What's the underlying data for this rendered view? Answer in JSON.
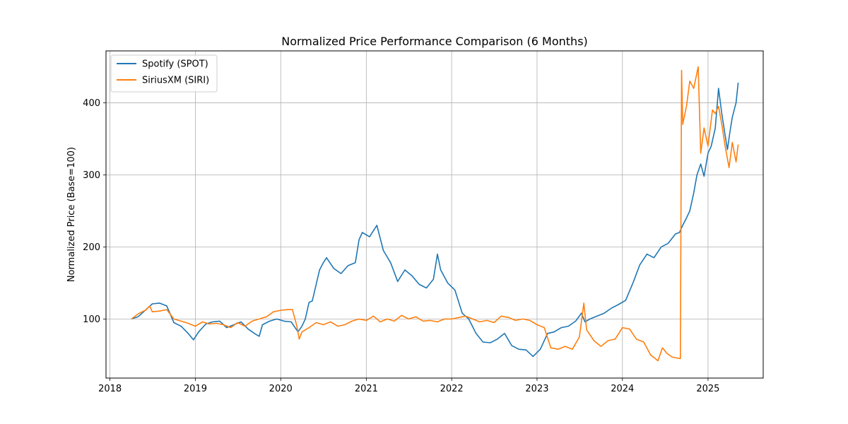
{
  "chart_data": {
    "type": "line",
    "title": "Normalized Price Performance Comparison (6 Months)",
    "xlabel": "",
    "ylabel": "Normalized Price (Base=100)",
    "xlim": [
      "2017-12-15",
      "2025-08-25"
    ],
    "ylim": [
      18,
      472
    ],
    "xticks": [
      {
        "date": "2018-01-01",
        "label": "2018"
      },
      {
        "date": "2019-01-01",
        "label": "2019"
      },
      {
        "date": "2020-01-01",
        "label": "2020"
      },
      {
        "date": "2021-01-01",
        "label": "2021"
      },
      {
        "date": "2022-01-01",
        "label": "2022"
      },
      {
        "date": "2023-01-01",
        "label": "2023"
      },
      {
        "date": "2024-01-01",
        "label": "2024"
      },
      {
        "date": "2025-01-01",
        "label": "2025"
      }
    ],
    "yticks": [
      100,
      200,
      300,
      400
    ],
    "grid": true,
    "legend_position": "top-left",
    "series": [
      {
        "name": "Spotify (SPOT)",
        "color": "#1f77b4",
        "points": [
          [
            "2018-04-03",
            100
          ],
          [
            "2018-05-01",
            103
          ],
          [
            "2018-06-01",
            112
          ],
          [
            "2018-07-01",
            121
          ],
          [
            "2018-08-01",
            122
          ],
          [
            "2018-09-01",
            118
          ],
          [
            "2018-10-01",
            95
          ],
          [
            "2018-11-01",
            90
          ],
          [
            "2018-12-01",
            80
          ],
          [
            "2018-12-24",
            71
          ],
          [
            "2019-01-15",
            82
          ],
          [
            "2019-02-15",
            93
          ],
          [
            "2019-03-15",
            96
          ],
          [
            "2019-04-15",
            97
          ],
          [
            "2019-05-15",
            88
          ],
          [
            "2019-06-15",
            92
          ],
          [
            "2019-07-15",
            96
          ],
          [
            "2019-08-15",
            86
          ],
          [
            "2019-09-15",
            79
          ],
          [
            "2019-10-01",
            76
          ],
          [
            "2019-10-15",
            92
          ],
          [
            "2019-11-15",
            97
          ],
          [
            "2019-12-15",
            100
          ],
          [
            "2020-01-15",
            97
          ],
          [
            "2020-02-15",
            96
          ],
          [
            "2020-03-15",
            82
          ],
          [
            "2020-04-01",
            90
          ],
          [
            "2020-04-15",
            100
          ],
          [
            "2020-05-01",
            123
          ],
          [
            "2020-05-15",
            125
          ],
          [
            "2020-06-15",
            168
          ],
          [
            "2020-07-01",
            178
          ],
          [
            "2020-07-15",
            185
          ],
          [
            "2020-08-15",
            170
          ],
          [
            "2020-09-15",
            163
          ],
          [
            "2020-10-15",
            174
          ],
          [
            "2020-11-15",
            178
          ],
          [
            "2020-12-01",
            210
          ],
          [
            "2020-12-15",
            220
          ],
          [
            "2021-01-15",
            214
          ],
          [
            "2021-02-15",
            230
          ],
          [
            "2021-03-15",
            195
          ],
          [
            "2021-04-15",
            178
          ],
          [
            "2021-05-15",
            152
          ],
          [
            "2021-06-15",
            168
          ],
          [
            "2021-07-15",
            160
          ],
          [
            "2021-08-15",
            148
          ],
          [
            "2021-09-15",
            143
          ],
          [
            "2021-10-15",
            155
          ],
          [
            "2021-11-01",
            190
          ],
          [
            "2021-11-15",
            168
          ],
          [
            "2021-12-15",
            150
          ],
          [
            "2022-01-15",
            140
          ],
          [
            "2022-02-15",
            108
          ],
          [
            "2022-03-15",
            100
          ],
          [
            "2022-04-15",
            80
          ],
          [
            "2022-05-15",
            68
          ],
          [
            "2022-06-15",
            67
          ],
          [
            "2022-07-15",
            72
          ],
          [
            "2022-08-15",
            80
          ],
          [
            "2022-09-15",
            63
          ],
          [
            "2022-10-15",
            58
          ],
          [
            "2022-11-15",
            57
          ],
          [
            "2022-12-15",
            48
          ],
          [
            "2023-01-15",
            58
          ],
          [
            "2023-02-15",
            80
          ],
          [
            "2023-03-15",
            82
          ],
          [
            "2023-04-15",
            88
          ],
          [
            "2023-05-15",
            90
          ],
          [
            "2023-06-15",
            97
          ],
          [
            "2023-07-10",
            108
          ],
          [
            "2023-07-25",
            96
          ],
          [
            "2023-08-15",
            100
          ],
          [
            "2023-09-15",
            104
          ],
          [
            "2023-10-15",
            108
          ],
          [
            "2023-11-15",
            115
          ],
          [
            "2023-12-15",
            120
          ],
          [
            "2024-01-15",
            126
          ],
          [
            "2024-02-15",
            150
          ],
          [
            "2024-03-15",
            175
          ],
          [
            "2024-04-15",
            190
          ],
          [
            "2024-05-15",
            185
          ],
          [
            "2024-06-15",
            200
          ],
          [
            "2024-07-15",
            205
          ],
          [
            "2024-08-15",
            218
          ],
          [
            "2024-09-01",
            220
          ],
          [
            "2024-09-15",
            230
          ],
          [
            "2024-10-01",
            240
          ],
          [
            "2024-10-15",
            250
          ],
          [
            "2024-11-01",
            275
          ],
          [
            "2024-11-15",
            300
          ],
          [
            "2024-12-01",
            315
          ],
          [
            "2024-12-15",
            298
          ],
          [
            "2025-01-01",
            330
          ],
          [
            "2025-01-15",
            340
          ],
          [
            "2025-02-01",
            365
          ],
          [
            "2025-02-15",
            420
          ],
          [
            "2025-03-01",
            385
          ],
          [
            "2025-03-15",
            355
          ],
          [
            "2025-03-25",
            335
          ],
          [
            "2025-04-05",
            360
          ],
          [
            "2025-04-15",
            380
          ],
          [
            "2025-05-01",
            400
          ],
          [
            "2025-05-10",
            428
          ]
        ]
      },
      {
        "name": "SiriusXM (SIRI)",
        "color": "#ff7f0e",
        "points": [
          [
            "2018-04-03",
            100
          ],
          [
            "2018-05-01",
            107
          ],
          [
            "2018-06-01",
            112
          ],
          [
            "2018-06-20",
            118
          ],
          [
            "2018-07-01",
            110
          ],
          [
            "2018-08-01",
            111
          ],
          [
            "2018-09-01",
            113
          ],
          [
            "2018-10-01",
            100
          ],
          [
            "2018-11-01",
            97
          ],
          [
            "2018-12-01",
            94
          ],
          [
            "2019-01-01",
            90
          ],
          [
            "2019-02-01",
            96
          ],
          [
            "2019-03-01",
            93
          ],
          [
            "2019-04-01",
            94
          ],
          [
            "2019-05-01",
            92
          ],
          [
            "2019-06-01",
            88
          ],
          [
            "2019-07-01",
            95
          ],
          [
            "2019-08-01",
            90
          ],
          [
            "2019-09-01",
            97
          ],
          [
            "2019-10-01",
            100
          ],
          [
            "2019-11-01",
            103
          ],
          [
            "2019-12-01",
            110
          ],
          [
            "2020-01-01",
            112
          ],
          [
            "2020-02-01",
            113
          ],
          [
            "2020-02-20",
            113
          ],
          [
            "2020-03-10",
            90
          ],
          [
            "2020-03-20",
            72
          ],
          [
            "2020-04-01",
            82
          ],
          [
            "2020-05-01",
            88
          ],
          [
            "2020-06-01",
            95
          ],
          [
            "2020-07-01",
            92
          ],
          [
            "2020-08-01",
            96
          ],
          [
            "2020-09-01",
            90
          ],
          [
            "2020-10-01",
            92
          ],
          [
            "2020-11-01",
            97
          ],
          [
            "2020-12-01",
            100
          ],
          [
            "2021-01-01",
            98
          ],
          [
            "2021-02-01",
            104
          ],
          [
            "2021-03-01",
            96
          ],
          [
            "2021-04-01",
            100
          ],
          [
            "2021-05-01",
            97
          ],
          [
            "2021-06-01",
            105
          ],
          [
            "2021-07-01",
            100
          ],
          [
            "2021-08-01",
            103
          ],
          [
            "2021-09-01",
            97
          ],
          [
            "2021-10-01",
            98
          ],
          [
            "2021-11-01",
            96
          ],
          [
            "2021-12-01",
            100
          ],
          [
            "2022-01-01",
            100
          ],
          [
            "2022-02-01",
            102
          ],
          [
            "2022-03-01",
            104
          ],
          [
            "2022-04-01",
            100
          ],
          [
            "2022-05-01",
            96
          ],
          [
            "2022-06-01",
            98
          ],
          [
            "2022-07-01",
            95
          ],
          [
            "2022-08-01",
            104
          ],
          [
            "2022-09-01",
            102
          ],
          [
            "2022-10-01",
            98
          ],
          [
            "2022-11-01",
            100
          ],
          [
            "2022-12-01",
            98
          ],
          [
            "2023-01-01",
            92
          ],
          [
            "2023-02-01",
            88
          ],
          [
            "2023-03-01",
            60
          ],
          [
            "2023-04-01",
            58
          ],
          [
            "2023-05-01",
            62
          ],
          [
            "2023-06-01",
            58
          ],
          [
            "2023-07-01",
            75
          ],
          [
            "2023-07-20",
            122
          ],
          [
            "2023-08-01",
            85
          ],
          [
            "2023-09-01",
            70
          ],
          [
            "2023-10-01",
            62
          ],
          [
            "2023-11-01",
            70
          ],
          [
            "2023-12-01",
            72
          ],
          [
            "2024-01-01",
            88
          ],
          [
            "2024-02-01",
            86
          ],
          [
            "2024-03-01",
            72
          ],
          [
            "2024-04-01",
            68
          ],
          [
            "2024-05-01",
            50
          ],
          [
            "2024-06-01",
            42
          ],
          [
            "2024-06-20",
            60
          ],
          [
            "2024-07-10",
            52
          ],
          [
            "2024-08-01",
            47
          ],
          [
            "2024-09-05",
            45
          ],
          [
            "2024-09-10",
            445
          ],
          [
            "2024-09-15",
            370
          ],
          [
            "2024-10-01",
            395
          ],
          [
            "2024-10-15",
            430
          ],
          [
            "2024-11-01",
            420
          ],
          [
            "2024-11-20",
            450
          ],
          [
            "2024-12-01",
            330
          ],
          [
            "2024-12-15",
            365
          ],
          [
            "2025-01-01",
            340
          ],
          [
            "2025-01-20",
            390
          ],
          [
            "2025-02-01",
            385
          ],
          [
            "2025-02-15",
            395
          ],
          [
            "2025-03-01",
            370
          ],
          [
            "2025-03-15",
            340
          ],
          [
            "2025-04-01",
            310
          ],
          [
            "2025-04-15",
            345
          ],
          [
            "2025-05-01",
            318
          ],
          [
            "2025-05-10",
            342
          ]
        ]
      }
    ]
  }
}
